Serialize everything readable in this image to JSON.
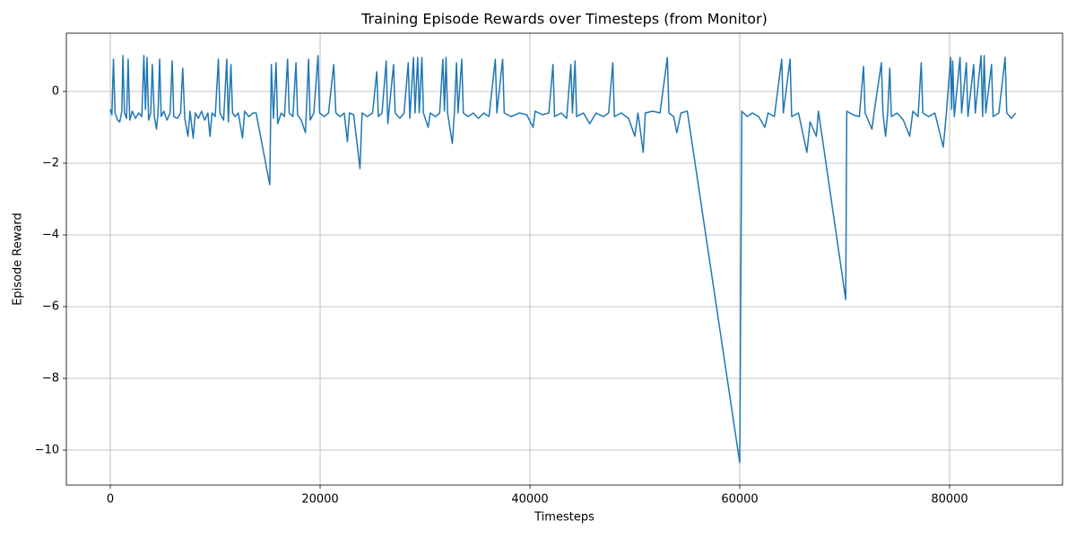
{
  "chart_data": {
    "type": "line",
    "title": "Training Episode Rewards over Timesteps (from Monitor)",
    "x_label": "Timesteps",
    "y_label": "Episode Reward",
    "color": "#1f77b4",
    "grid": true,
    "xlim": [
      -4190,
      90770
    ],
    "ylim": [
      -10.975,
      1.625
    ],
    "xticks": [
      0,
      20000,
      40000,
      60000,
      80000
    ],
    "yticks": [
      {
        "value": -10,
        "label": "−10"
      },
      {
        "value": -8,
        "label": "−8"
      },
      {
        "value": -6,
        "label": "−6"
      },
      {
        "value": -4,
        "label": "−4"
      },
      {
        "value": -2,
        "label": "−2"
      },
      0
    ],
    "x": [
      0,
      150,
      300,
      450,
      700,
      900,
      1100,
      1200,
      1350,
      1550,
      1700,
      1850,
      2100,
      2400,
      2700,
      3000,
      3200,
      3350,
      3500,
      3650,
      3850,
      4000,
      4200,
      4400,
      4550,
      4700,
      4850,
      5100,
      5400,
      5700,
      5900,
      6050,
      6400,
      6700,
      6900,
      7100,
      7400,
      7600,
      7900,
      8100,
      8400,
      8700,
      9000,
      9300,
      9500,
      9700,
      10000,
      10300,
      10450,
      10800,
      11100,
      11250,
      11500,
      11650,
      11900,
      12200,
      12600,
      12800,
      13200,
      13600,
      13900,
      15200,
      15350,
      15550,
      15800,
      15950,
      16300,
      16600,
      16900,
      17050,
      17400,
      17700,
      17850,
      18200,
      18600,
      18900,
      19050,
      19400,
      19800,
      19950,
      20400,
      20800,
      21300,
      21500,
      21900,
      22300,
      22600,
      22800,
      23200,
      23800,
      24000,
      24500,
      25000,
      25400,
      25550,
      25900,
      26300,
      26450,
      27000,
      27150,
      27600,
      28000,
      28400,
      28550,
      28900,
      29050,
      29300,
      29450,
      29700,
      29850,
      30300,
      30500,
      31000,
      31400,
      31700,
      31850,
      32000,
      32150,
      32600,
      32800,
      33000,
      33150,
      33500,
      33650,
      34100,
      34600,
      35100,
      35600,
      36100,
      36700,
      36850,
      37400,
      37550,
      38200,
      39000,
      39700,
      40300,
      40500,
      41200,
      41800,
      42200,
      42350,
      43000,
      43500,
      43900,
      44050,
      44300,
      44450,
      45100,
      45700,
      46300,
      47000,
      47500,
      47900,
      48050,
      48700,
      49400,
      50000,
      50300,
      50800,
      51000,
      51700,
      52400,
      53100,
      53250,
      53700,
      54000,
      54400,
      55000,
      60000,
      60200,
      60700,
      61200,
      61800,
      62400,
      62700,
      63300,
      64000,
      64150,
      64800,
      64950,
      65600,
      66400,
      66700,
      67300,
      67500,
      70100,
      70200,
      70800,
      71400,
      71800,
      71950,
      72600,
      72800,
      73500,
      73650,
      73900,
      74100,
      74300,
      74450,
      75000,
      75600,
      76200,
      76500,
      77000,
      77300,
      77450,
      78000,
      78600,
      79400,
      79700,
      80100,
      80200,
      80300,
      80450,
      81000,
      81150,
      81600,
      81750,
      82300,
      82450,
      83000,
      83150,
      83300,
      83450,
      84000,
      84150,
      84700,
      85300,
      85450,
      85900,
      86300
    ],
    "values": [
      -0.5,
      -0.65,
      0.9,
      -0.6,
      -0.8,
      -0.85,
      -0.55,
      1.0,
      -0.6,
      -0.75,
      0.9,
      -0.8,
      -0.55,
      -0.75,
      -0.6,
      -0.7,
      1.0,
      -0.5,
      0.95,
      -0.8,
      -0.6,
      0.75,
      -0.7,
      -1.05,
      -0.6,
      0.9,
      -0.7,
      -0.55,
      -0.8,
      -0.6,
      0.85,
      -0.7,
      -0.75,
      -0.6,
      0.65,
      -0.75,
      -1.25,
      -0.55,
      -1.3,
      -0.6,
      -0.75,
      -0.55,
      -0.8,
      -0.6,
      -1.25,
      -0.6,
      -0.7,
      0.9,
      -0.6,
      -0.8,
      0.9,
      -0.85,
      0.75,
      -0.6,
      -0.7,
      -0.6,
      -1.3,
      -0.55,
      -0.7,
      -0.6,
      -0.6,
      -2.6,
      0.75,
      -0.75,
      0.8,
      -0.9,
      -0.6,
      -0.7,
      0.9,
      -0.6,
      -0.7,
      0.8,
      -0.65,
      -0.8,
      -1.15,
      0.9,
      -0.8,
      -0.6,
      1.0,
      -0.6,
      -0.7,
      -0.6,
      0.75,
      -0.6,
      -0.7,
      -0.6,
      -1.4,
      -0.6,
      -0.65,
      -2.15,
      -0.6,
      -0.7,
      -0.6,
      0.55,
      -0.7,
      -0.6,
      0.85,
      -0.9,
      0.75,
      -0.6,
      -0.75,
      -0.6,
      0.8,
      -0.75,
      0.95,
      -0.6,
      0.95,
      -0.6,
      0.95,
      -0.6,
      -1.0,
      -0.6,
      -0.7,
      -0.6,
      0.9,
      -0.55,
      0.95,
      -0.6,
      -1.45,
      -0.6,
      0.8,
      -0.6,
      0.9,
      -0.6,
      -0.7,
      -0.6,
      -0.75,
      -0.6,
      -0.7,
      0.9,
      -0.6,
      0.9,
      -0.6,
      -0.7,
      -0.6,
      -0.65,
      -1.0,
      -0.55,
      -0.65,
      -0.6,
      0.75,
      -0.7,
      -0.6,
      -0.75,
      0.75,
      -0.6,
      0.85,
      -0.7,
      -0.6,
      -0.9,
      -0.6,
      -0.7,
      -0.6,
      0.8,
      -0.7,
      -0.6,
      -0.75,
      -1.25,
      -0.6,
      -1.7,
      -0.6,
      -0.55,
      -0.6,
      0.95,
      -0.6,
      -0.7,
      -1.15,
      -0.6,
      -0.55,
      -10.35,
      -0.55,
      -0.7,
      -0.6,
      -0.7,
      -1.0,
      -0.6,
      -0.7,
      0.9,
      -0.6,
      0.9,
      -0.7,
      -0.6,
      -1.7,
      -0.85,
      -1.25,
      -0.55,
      -5.8,
      -0.55,
      -0.65,
      -0.7,
      0.7,
      -0.6,
      -1.05,
      -0.6,
      0.8,
      -0.6,
      -1.25,
      -0.6,
      0.65,
      -0.7,
      -0.6,
      -0.8,
      -1.25,
      -0.55,
      -0.7,
      0.8,
      -0.6,
      -0.7,
      -0.6,
      -1.55,
      -0.6,
      0.95,
      -0.5,
      0.85,
      -0.7,
      0.95,
      -0.6,
      0.8,
      -0.7,
      0.75,
      -0.6,
      1.0,
      -0.7,
      1.0,
      -0.6,
      0.75,
      -0.7,
      -0.6,
      0.95,
      -0.6,
      -0.75,
      -0.6
    ]
  }
}
